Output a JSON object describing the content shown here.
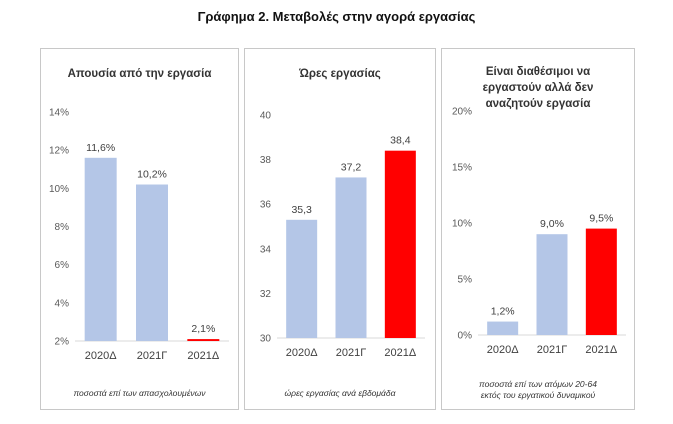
{
  "figure_title": "Γράφημα 2. Μεταβολές στην αγορά εργασίας",
  "colors": {
    "bar_default": "#b4c6e7",
    "bar_highlight": "#ff0000",
    "axis": "#d9d9d9",
    "border": "#c8c8c8"
  },
  "chart_data": [
    {
      "type": "bar",
      "title": "Απουσία από την εργασία",
      "title_lines": [
        "Απουσία από την εργασία"
      ],
      "categories": [
        "2020Δ",
        "2021Γ",
        "2021Δ"
      ],
      "values": [
        11.6,
        10.2,
        2.1
      ],
      "value_labels": [
        "11,6%",
        "10,2%",
        "2,1%"
      ],
      "highlight_index": 2,
      "ylim": [
        2,
        14
      ],
      "yticks": [
        2,
        4,
        6,
        8,
        10,
        12,
        14
      ],
      "ytick_labels": [
        "2%",
        "4%",
        "6%",
        "8%",
        "10%",
        "12%",
        "14%"
      ],
      "note_lines": [
        "ποσοστά επί των  απασχολουμένων"
      ]
    },
    {
      "type": "bar",
      "title": "Ώρες εργασίας",
      "title_lines": [
        "Ώρες εργασίας"
      ],
      "categories": [
        "2020Δ",
        "2021Γ",
        "2021Δ"
      ],
      "values": [
        35.3,
        37.2,
        38.4
      ],
      "value_labels": [
        "35,3",
        "37,2",
        "38,4"
      ],
      "highlight_index": 2,
      "ylim": [
        30,
        40
      ],
      "yticks": [
        30,
        32,
        34,
        36,
        38,
        40
      ],
      "ytick_labels": [
        "30",
        "32",
        "34",
        "36",
        "38",
        "40"
      ],
      "note_lines": [
        "ώρες εργασίας ανά εβδομάδα"
      ]
    },
    {
      "type": "bar",
      "title": "Είναι διαθέσιμοι να εργαστούν αλλά δεν αναζητούν εργασία",
      "title_lines": [
        "Είναι διαθέσιμοι να",
        "εργαστούν αλλά δεν",
        "αναζητούν εργασία"
      ],
      "categories": [
        "2020Δ",
        "2021Γ",
        "2021Δ"
      ],
      "values": [
        1.2,
        9.0,
        9.5
      ],
      "value_labels": [
        "1,2%",
        "9,0%",
        "9,5%"
      ],
      "highlight_index": 2,
      "ylim": [
        0,
        20
      ],
      "yticks": [
        0,
        5,
        10,
        15,
        20
      ],
      "ytick_labels": [
        "0%",
        "5%",
        "10%",
        "15%",
        "20%"
      ],
      "note_lines": [
        "ποσοστά επί των ατόμων 20-64",
        "εκτός του εργατικού δυναμικού"
      ]
    }
  ]
}
